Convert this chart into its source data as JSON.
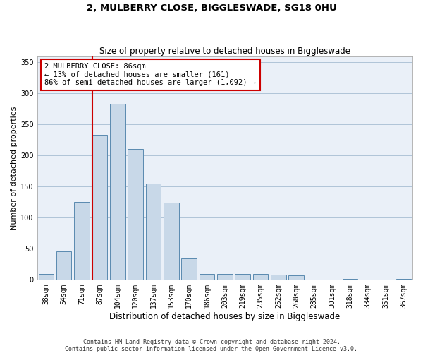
{
  "title": "2, MULBERRY CLOSE, BIGGLESWADE, SG18 0HU",
  "subtitle": "Size of property relative to detached houses in Biggleswade",
  "xlabel": "Distribution of detached houses by size in Biggleswade",
  "ylabel": "Number of detached properties",
  "footnote1": "Contains HM Land Registry data © Crown copyright and database right 2024.",
  "footnote2": "Contains public sector information licensed under the Open Government Licence v3.0.",
  "annotation_title": "2 MULBERRY CLOSE: 86sqm",
  "annotation_line2": "← 13% of detached houses are smaller (161)",
  "annotation_line3": "86% of semi-detached houses are larger (1,092) →",
  "bar_labels": [
    "38sqm",
    "54sqm",
    "71sqm",
    "87sqm",
    "104sqm",
    "120sqm",
    "137sqm",
    "153sqm",
    "170sqm",
    "186sqm",
    "203sqm",
    "219sqm",
    "235sqm",
    "252sqm",
    "268sqm",
    "285sqm",
    "301sqm",
    "318sqm",
    "334sqm",
    "351sqm",
    "367sqm"
  ],
  "bar_values": [
    10,
    46,
    126,
    233,
    284,
    211,
    155,
    124,
    35,
    10,
    10,
    10,
    9,
    8,
    7,
    0,
    0,
    2,
    0,
    0,
    2
  ],
  "bar_color": "#c8d8e8",
  "bar_edge_color": "#5a8ab0",
  "vline_position": 2.575,
  "vline_color": "#cc0000",
  "ylim": [
    0,
    360
  ],
  "yticks": [
    0,
    50,
    100,
    150,
    200,
    250,
    300,
    350
  ],
  "grid_color": "#b0c4d8",
  "background_color": "#eaf0f8",
  "title_fontsize": 9.5,
  "subtitle_fontsize": 8.5,
  "xlabel_fontsize": 8.5,
  "ylabel_fontsize": 8,
  "tick_fontsize": 7,
  "annotation_fontsize": 7.5
}
